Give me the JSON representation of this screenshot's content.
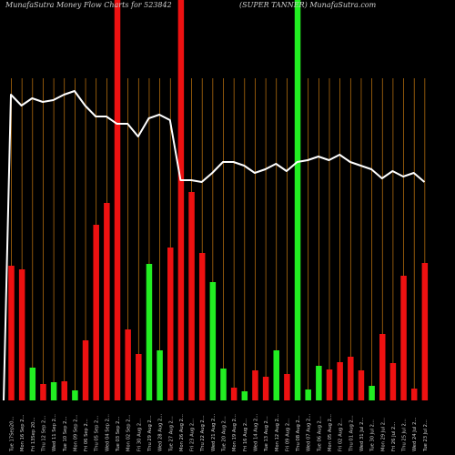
{
  "header": {
    "left": "MunafaSutra  Money Flow  Charts for 523842",
    "right": "(SUPER TANNER) MunafaSutra.com"
  },
  "colors": {
    "background": "#000000",
    "up": "#22ee22",
    "down": "#ee1111",
    "grid": "#c87a10",
    "line": "#ffffff",
    "text": "#cfcfcf"
  },
  "chart_data": {
    "type": "bar",
    "title": "",
    "xlabel": "",
    "ylabel": "",
    "categories": [
      "Tue 17Sep20...",
      "Mon 16 Sep 2...",
      "Fri 13Sep 20...",
      "Thu 12 Sep 2...",
      "Wed 11 Sep 2...",
      "Tue 10 Sep 2...",
      "Mon 09 Sep 2...",
      "Fri 06 Sep 2...",
      "Thu 05 Sep 2...",
      "Wed 04 Sep 2...",
      "Tue 03 Sep 2...",
      "Mon 02 Sep 2...",
      "Fri 30 Aug 2...",
      "Thu 29 Aug 2...",
      "Wed 28 Aug 2...",
      "Tue 27 Aug 2...",
      "Mon 26 Aug 2...",
      "Fri 23 Aug 2...",
      "Thu 22 Aug 2...",
      "Wed 21 Aug 2...",
      "Tue 20 Aug 2...",
      "Mon 19 Aug 2...",
      "Fri 16 Aug 2...",
      "Wed 14 Aug 2...",
      "Tue 13 Aug 2...",
      "Mon 12 Aug 2...",
      "Fri 09 Aug 2...",
      "Thu 08 Aug 2...",
      "Wed 07 Aug 2...",
      "Tue 06 Aug 2...",
      "Mon 05 Aug 2...",
      "Fri 02 Aug 2...",
      "Thu 01 Aug 2...",
      "Wed 31 Jul 2...",
      "Tue 30 Jul 2...",
      "Mon 29 Jul 2...",
      "Fri 26 Jul 2...",
      "Thu 25 Jul 2...",
      "Wed 24 Jul 2...",
      "Tue 23 Jul 2..."
    ],
    "bars": [
      {
        "value": 148,
        "dir": "down"
      },
      {
        "value": 144,
        "dir": "down"
      },
      {
        "value": 36,
        "dir": "up"
      },
      {
        "value": 18,
        "dir": "down"
      },
      {
        "value": 20,
        "dir": "up"
      },
      {
        "value": 21,
        "dir": "down"
      },
      {
        "value": 11,
        "dir": "up"
      },
      {
        "value": 66,
        "dir": "down"
      },
      {
        "value": 193,
        "dir": "down"
      },
      {
        "value": 217,
        "dir": "down"
      },
      {
        "value": 440,
        "dir": "down"
      },
      {
        "value": 78,
        "dir": "down"
      },
      {
        "value": 51,
        "dir": "down"
      },
      {
        "value": 150,
        "dir": "up"
      },
      {
        "value": 55,
        "dir": "up"
      },
      {
        "value": 168,
        "dir": "down"
      },
      {
        "value": 440,
        "dir": "down"
      },
      {
        "value": 229,
        "dir": "down"
      },
      {
        "value": 162,
        "dir": "down"
      },
      {
        "value": 130,
        "dir": "up"
      },
      {
        "value": 35,
        "dir": "up"
      },
      {
        "value": 14,
        "dir": "down"
      },
      {
        "value": 10,
        "dir": "up"
      },
      {
        "value": 33,
        "dir": "down"
      },
      {
        "value": 26,
        "dir": "down"
      },
      {
        "value": 55,
        "dir": "up"
      },
      {
        "value": 29,
        "dir": "down"
      },
      {
        "value": 440,
        "dir": "up"
      },
      {
        "value": 12,
        "dir": "up"
      },
      {
        "value": 38,
        "dir": "up"
      },
      {
        "value": 34,
        "dir": "down"
      },
      {
        "value": 42,
        "dir": "down"
      },
      {
        "value": 48,
        "dir": "down"
      },
      {
        "value": 33,
        "dir": "down"
      },
      {
        "value": 16,
        "dir": "up"
      },
      {
        "value": 73,
        "dir": "down"
      },
      {
        "value": 41,
        "dir": "down"
      },
      {
        "value": 137,
        "dir": "down"
      },
      {
        "value": 13,
        "dir": "down"
      },
      {
        "value": 151,
        "dir": "down"
      }
    ],
    "bar_ylim": [
      0,
      440
    ],
    "line_values": [
      78,
      72,
      76,
      74,
      75,
      78,
      80,
      72,
      66,
      66,
      62,
      62,
      55,
      65,
      67,
      64,
      31,
      31,
      30,
      35,
      41,
      41,
      39,
      35,
      37,
      40,
      36,
      41,
      42,
      44,
      42,
      45,
      41,
      39,
      37,
      32,
      36,
      33,
      35,
      30
    ],
    "line_ylim": [
      0,
      100
    ],
    "grid": true
  }
}
